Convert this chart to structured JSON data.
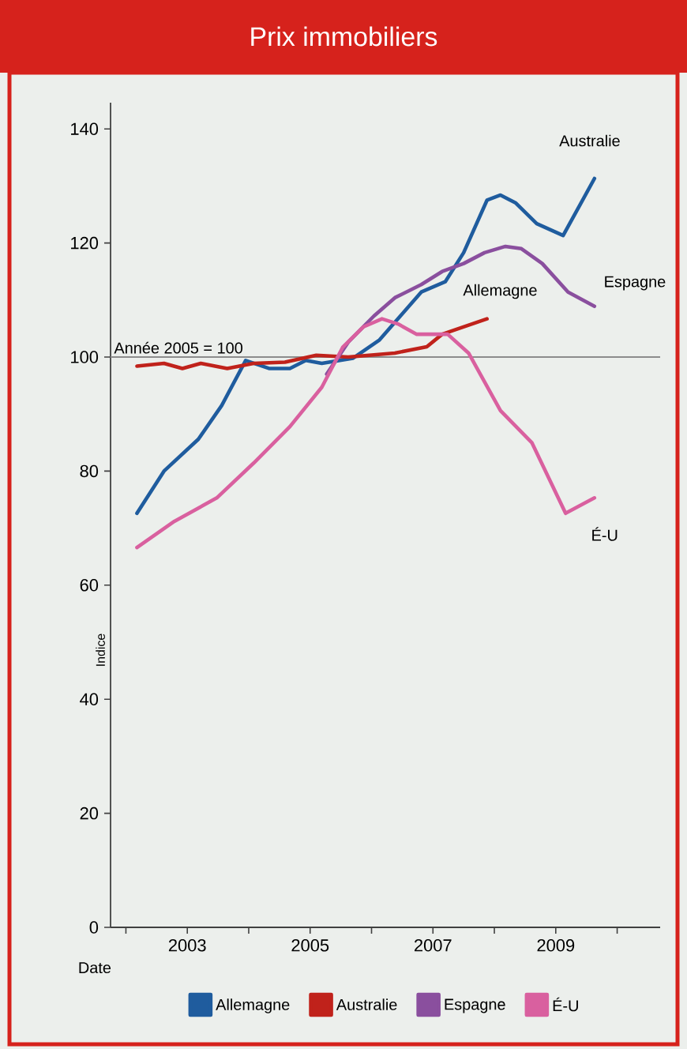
{
  "chart_data": {
    "type": "line",
    "title": "Prix immobiliers",
    "xlabel": "Date",
    "ylabel": "Indice",
    "xlim": [
      2001.75,
      2010.7
    ],
    "xticks": [
      {
        "value": 2002,
        "label": null
      },
      2003,
      {
        "value": 2004,
        "label": null
      },
      2005,
      {
        "value": 2006,
        "label": null
      },
      2007,
      {
        "value": 2008,
        "label": null
      },
      2009,
      {
        "value": 2010,
        "label": null
      }
    ],
    "ylim": [
      0,
      144.6
    ],
    "yticks": [
      0,
      20,
      40,
      60,
      80,
      100,
      120,
      140
    ],
    "legend": "bottom",
    "ref_lines": [
      {
        "axis": "y",
        "value": 100,
        "label": "Année 2005 = 100",
        "color": "#8c8c8c"
      }
    ],
    "annotations": [
      "Australie",
      "Espagne",
      "Allemagne",
      "É-U"
    ],
    "series": [
      {
        "name": "Allemagne",
        "color": "#1f5c9e",
        "x": [
          2002.18,
          2002.62,
          2003.18,
          2003.56,
          2003.95,
          2004.33,
          2004.67,
          2004.93,
          2005.19,
          2005.7,
          2006.13,
          2006.47,
          2006.81,
          2007.2,
          2007.5,
          2007.88,
          2008.1,
          2008.35,
          2008.69,
          2009.12,
          2009.63
        ],
        "values": [
          72.6,
          80,
          85.6,
          91.5,
          99.4,
          98,
          98,
          99.4,
          98.9,
          99.8,
          103,
          107.2,
          111.4,
          113.2,
          118.3,
          127.5,
          128.4,
          127,
          123.4,
          121.3,
          131.3
        ]
      },
      {
        "name": "Australie",
        "color": "#c0221b",
        "x": [
          2002.18,
          2002.62,
          2002.92,
          2003.22,
          2003.65,
          2004.08,
          2004.59,
          2005.1,
          2005.62,
          2006.38,
          2006.9,
          2007.15,
          2007.88
        ],
        "values": [
          98.4,
          98.9,
          98,
          98.9,
          98,
          98.9,
          99.1,
          100.3,
          100,
          100.7,
          101.8,
          104,
          106.7
        ]
      },
      {
        "name": "Espagne",
        "color": "#8a4f9e",
        "x": [
          2005.27,
          2005.62,
          2006.04,
          2006.38,
          2006.81,
          2007.15,
          2007.5,
          2007.84,
          2008.18,
          2008.44,
          2008.78,
          2009.2,
          2009.63
        ],
        "values": [
          97,
          102.6,
          107.2,
          110.4,
          112.7,
          115,
          116.4,
          118.3,
          119.4,
          119,
          116.4,
          111.4,
          108.9
        ]
      },
      {
        "name": "É-U",
        "color": "#d9609f",
        "x": [
          2002.18,
          2002.79,
          2003.48,
          2004.08,
          2004.67,
          2005.19,
          2005.53,
          2005.87,
          2006.17,
          2006.43,
          2006.73,
          2007.24,
          2007.58,
          2008.1,
          2008.61,
          2009.16,
          2009.63
        ],
        "values": [
          66.6,
          71.2,
          75.3,
          81.4,
          87.8,
          94.7,
          101.7,
          105.3,
          106.7,
          105.8,
          104,
          104,
          100.7,
          90.6,
          85,
          72.6,
          75.3
        ]
      }
    ]
  }
}
